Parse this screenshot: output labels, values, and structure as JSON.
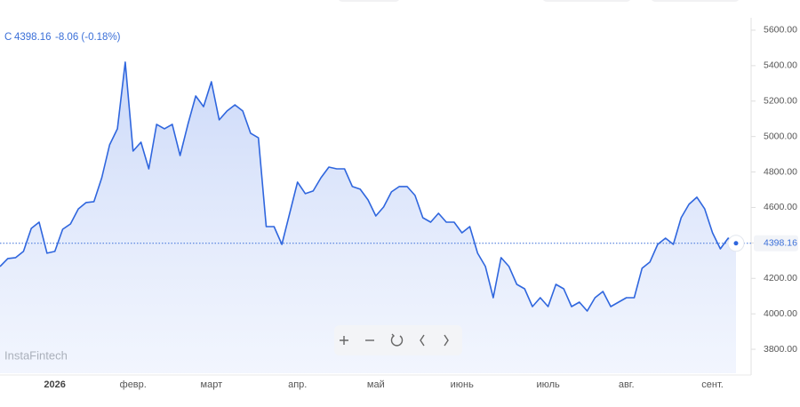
{
  "chart_data": {
    "type": "area",
    "symbol": "C",
    "change_label": "-8.06 (-0.18%)",
    "watermark": "InstaFintech",
    "color": "#2f66de",
    "categories": [
      null,
      null,
      null,
      null,
      null,
      null,
      null,
      "2026",
      null,
      null,
      null,
      null,
      null,
      null,
      null,
      null,
      null,
      "февр.",
      null,
      null,
      null,
      null,
      null,
      null,
      null,
      null,
      null,
      "март",
      null,
      null,
      null,
      null,
      null,
      null,
      null,
      null,
      null,
      null,
      "апр.",
      null,
      null,
      null,
      null,
      null,
      null,
      null,
      null,
      null,
      "май",
      null,
      null,
      null,
      null,
      null,
      null,
      null,
      null,
      null,
      null,
      "июнь",
      null,
      null,
      null,
      null,
      null,
      null,
      null,
      null,
      null,
      null,
      "июль",
      null,
      null,
      null,
      null,
      null,
      null,
      null,
      null,
      null,
      "авг.",
      null,
      null,
      null,
      null,
      null,
      null,
      null,
      null,
      null,
      null,
      "сент.",
      null,
      null,
      null
    ],
    "values": [
      4267,
      4312,
      4317,
      4352,
      4482,
      4517,
      4342,
      4352,
      4477,
      4507,
      4592,
      4628,
      4633,
      4768,
      4953,
      5044,
      5420,
      4918,
      4968,
      4818,
      5069,
      5044,
      5069,
      4893,
      5069,
      5229,
      5169,
      5309,
      5094,
      5144,
      5179,
      5144,
      5019,
      4993,
      4492,
      4492,
      4392,
      4567,
      4743,
      4678,
      4693,
      4768,
      4828,
      4818,
      4818,
      4718,
      4703,
      4643,
      4552,
      4603,
      4688,
      4718,
      4718,
      4668,
      4542,
      4517,
      4567,
      4517,
      4517,
      4457,
      4492,
      4342,
      4267,
      4091,
      4317,
      4267,
      4166,
      4141,
      4041,
      4091,
      4041,
      4166,
      4141,
      4041,
      4066,
      4016,
      4091,
      4126,
      4041,
      4066,
      4091,
      4091,
      4257,
      4292,
      4392,
      4427,
      4392,
      4542,
      4618,
      4658,
      4592,
      4457,
      4367,
      4427,
      4398.16
    ],
    "ylim": [
      3665,
      5670
    ],
    "yticks": [
      {
        "value": 3800,
        "label": "3800.00"
      },
      {
        "value": 4000,
        "label": "4000.00"
      },
      {
        "value": 4200,
        "label": "4200.00"
      },
      {
        "value": 4400,
        "label": "4400.00"
      },
      {
        "value": 4600,
        "label": "4600.00"
      },
      {
        "value": 4800,
        "label": "4800.00"
      },
      {
        "value": 5000,
        "label": "5000.00"
      },
      {
        "value": 5200,
        "label": "5200.00"
      },
      {
        "value": 5400,
        "label": "5400.00"
      },
      {
        "value": 5600,
        "label": "5600.00"
      }
    ]
  }
}
